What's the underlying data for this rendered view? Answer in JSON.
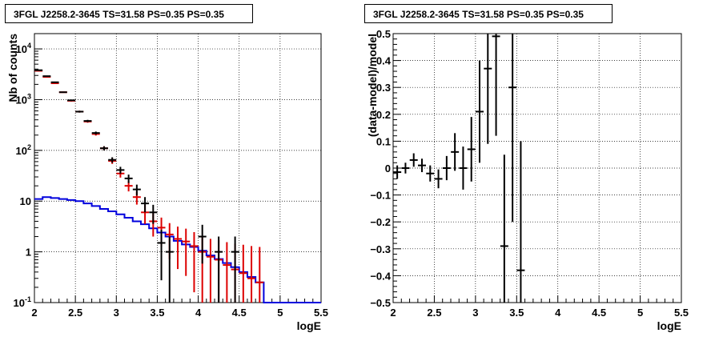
{
  "panels": [
    {
      "title": "3FGL J2258.2-3645 TS=31.58 PS=0.35 PS=0.35"
    },
    {
      "title": "3FGL J2258.2-3645 TS=31.58 PS=0.35 PS=0.35"
    }
  ],
  "colors": {
    "data": "#000000",
    "model_points": "#dd0000",
    "model_line": "#0000dd"
  },
  "chart_data": [
    {
      "type": "scatter",
      "title": "3FGL J2258.2-3645 TS=31.58 PS=0.35 PS=0.35",
      "xlabel": "logE",
      "ylabel": "Nb of counts",
      "xlim": [
        2,
        5.5
      ],
      "ylim": [
        0.1,
        20000
      ],
      "yscale": "log",
      "grid": true,
      "x_ticks": [
        "2",
        "2.5",
        "3",
        "3.5",
        "4",
        "4.5",
        "5",
        "5.5"
      ],
      "y_ticks": [
        "10^-1",
        "1",
        "10",
        "10^2",
        "10^3",
        "10^4"
      ],
      "series": [
        {
          "color": "black",
          "points": [
            {
              "x": 2.05,
              "y": 3800
            },
            {
              "x": 2.15,
              "y": 2900
            },
            {
              "x": 2.25,
              "y": 2200
            },
            {
              "x": 2.35,
              "y": 1400
            },
            {
              "x": 2.45,
              "y": 970
            },
            {
              "x": 2.55,
              "y": 580
            },
            {
              "x": 2.65,
              "y": 380
            },
            {
              "x": 2.75,
              "y": 220
            },
            {
              "x": 2.85,
              "y": 110
            },
            {
              "x": 2.95,
              "y": 65
            },
            {
              "x": 3.05,
              "y": 41
            },
            {
              "x": 3.15,
              "y": 28
            },
            {
              "x": 3.25,
              "y": 17
            },
            {
              "x": 3.35,
              "y": 9
            },
            {
              "x": 3.45,
              "y": 6
            },
            {
              "x": 3.55,
              "y": 1.5
            },
            {
              "x": 3.65,
              "y": 1.0
            },
            {
              "x": 4.05,
              "y": 2.0
            },
            {
              "x": 4.25,
              "y": 1.0
            },
            {
              "x": 4.45,
              "y": 1.0
            }
          ]
        },
        {
          "color": "red",
          "points": [
            {
              "x": 2.05,
              "y": 3700
            },
            {
              "x": 2.15,
              "y": 2800
            },
            {
              "x": 2.25,
              "y": 2100
            },
            {
              "x": 2.35,
              "y": 1400
            },
            {
              "x": 2.45,
              "y": 950
            },
            {
              "x": 2.55,
              "y": 580
            },
            {
              "x": 2.65,
              "y": 370
            },
            {
              "x": 2.75,
              "y": 210
            },
            {
              "x": 2.85,
              "y": 110
            },
            {
              "x": 2.95,
              "y": 62
            },
            {
              "x": 3.05,
              "y": 35
            },
            {
              "x": 3.15,
              "y": 20
            },
            {
              "x": 3.25,
              "y": 12
            },
            {
              "x": 3.35,
              "y": 6
            },
            {
              "x": 3.45,
              "y": 4
            },
            {
              "x": 3.55,
              "y": 3
            },
            {
              "x": 3.65,
              "y": 2.2
            },
            {
              "x": 3.75,
              "y": 1.8
            },
            {
              "x": 3.85,
              "y": 1.6
            },
            {
              "x": 3.95,
              "y": 1.3
            },
            {
              "x": 4.05,
              "y": 1.0
            },
            {
              "x": 4.15,
              "y": 0.8
            },
            {
              "x": 4.25,
              "y": 0.7
            },
            {
              "x": 4.35,
              "y": 0.55
            },
            {
              "x": 4.45,
              "y": 0.45
            },
            {
              "x": 4.55,
              "y": 0.38
            },
            {
              "x": 4.65,
              "y": 0.3
            },
            {
              "x": 4.75,
              "y": 0.25
            }
          ]
        },
        {
          "color": "blue",
          "type": "step",
          "edges": [
            2.0,
            2.1,
            2.2,
            2.3,
            2.4,
            2.5,
            2.6,
            2.7,
            2.8,
            2.9,
            3.0,
            3.1,
            3.2,
            3.3,
            3.4,
            3.5,
            3.6,
            3.7,
            3.8,
            3.9,
            4.0,
            4.1,
            4.2,
            4.3,
            4.4,
            4.5,
            4.6,
            4.7,
            4.8,
            4.9,
            5.0,
            5.1,
            5.2,
            5.3,
            5.4,
            5.5
          ],
          "values": [
            11,
            12,
            11.5,
            11,
            10.5,
            10,
            9,
            8,
            7,
            6.3,
            5.5,
            4.7,
            4,
            3.5,
            2.9,
            2.4,
            2.0,
            1.65,
            1.4,
            1.25,
            1.05,
            0.85,
            0.72,
            0.6,
            0.5,
            0.4,
            0.32,
            0.25,
            0.1,
            0.1,
            0.1,
            0.1,
            0.1,
            0.1,
            0.1
          ]
        }
      ]
    },
    {
      "type": "scatter",
      "title": "3FGL J2258.2-3645 TS=31.58 PS=0.35 PS=0.35",
      "xlabel": "logE",
      "ylabel": "(data-model)/model",
      "xlim": [
        2,
        5.5
      ],
      "ylim": [
        -0.5,
        0.5
      ],
      "grid": true,
      "x_ticks": [
        "2",
        "2.5",
        "3",
        "3.5",
        "4",
        "4.5",
        "5",
        "5.5"
      ],
      "y_ticks": [
        "−0.5",
        "−0.4",
        "−0.3",
        "−0.2",
        "−0.1",
        "0",
        "0.1",
        "0.2",
        "0.3",
        "0.4",
        "0.5"
      ],
      "series": [
        {
          "color": "black",
          "points": [
            {
              "x": 2.05,
              "y": -0.015,
              "err": 0.025
            },
            {
              "x": 2.15,
              "y": 0.0,
              "err": 0.02
            },
            {
              "x": 2.25,
              "y": 0.03,
              "err": 0.025
            },
            {
              "x": 2.35,
              "y": 0.01,
              "err": 0.025
            },
            {
              "x": 2.45,
              "y": -0.02,
              "err": 0.03
            },
            {
              "x": 2.55,
              "y": -0.04,
              "err": 0.035
            },
            {
              "x": 2.65,
              "y": 0.0,
              "err": 0.045
            },
            {
              "x": 2.75,
              "y": 0.06,
              "err": 0.07
            },
            {
              "x": 2.85,
              "y": 0.0,
              "err": 0.08
            },
            {
              "x": 2.95,
              "y": 0.07,
              "err": 0.12
            },
            {
              "x": 3.05,
              "y": 0.21,
              "err": 0.19
            },
            {
              "x": 3.15,
              "y": 0.37,
              "err": 0.28
            },
            {
              "x": 3.25,
              "y": 0.49,
              "err": 0.37
            },
            {
              "x": 3.35,
              "y": -0.29,
              "err": 0.34
            },
            {
              "x": 3.45,
              "y": 0.3,
              "err": 0.5
            },
            {
              "x": 3.55,
              "y": -0.38,
              "err": 0.48
            }
          ]
        }
      ]
    }
  ]
}
